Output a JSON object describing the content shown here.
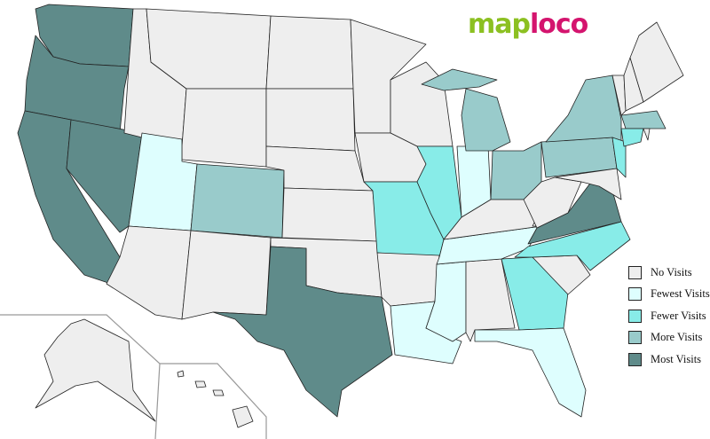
{
  "logo": {
    "part1": "map",
    "part2": "loco"
  },
  "colors": {
    "none": "#eeeeee",
    "fewest": "#defefe",
    "fewer": "#88ece8",
    "more": "#99cbcb",
    "most": "#5f8b8a"
  },
  "legend": [
    {
      "key": "none",
      "label": "No Visits"
    },
    {
      "key": "fewest",
      "label": "Fewest Visits"
    },
    {
      "key": "fewer",
      "label": "Fewer Visits"
    },
    {
      "key": "more",
      "label": "More Visits"
    },
    {
      "key": "most",
      "label": "Most Visits"
    }
  ],
  "states": {
    "WA": "most",
    "OR": "most",
    "CA": "most",
    "NV": "most",
    "TX": "most",
    "VA": "most",
    "CO": "more",
    "MI": "more",
    "OH": "more",
    "NY": "more",
    "PA": "more",
    "MA": "more",
    "MO": "fewer",
    "IL": "fewer",
    "NC": "fewer",
    "GA": "fewer",
    "NJ": "fewer",
    "CT": "fewer",
    "UT": "fewest",
    "IN": "fewest",
    "TN": "fewest",
    "MS": "fewest",
    "LA": "fewest",
    "FL": "fewest",
    "ID": "none",
    "MT": "none",
    "WY": "none",
    "AZ": "none",
    "NM": "none",
    "ND": "none",
    "SD": "none",
    "NE": "none",
    "KS": "none",
    "OK": "none",
    "MN": "none",
    "IA": "none",
    "WI": "none",
    "AR": "none",
    "AL": "none",
    "KY": "none",
    "SC": "none",
    "WV": "none",
    "MD": "none",
    "VT": "none",
    "NH": "none",
    "ME": "none",
    "RI": "none",
    "AK": "none",
    "HI": "none"
  }
}
